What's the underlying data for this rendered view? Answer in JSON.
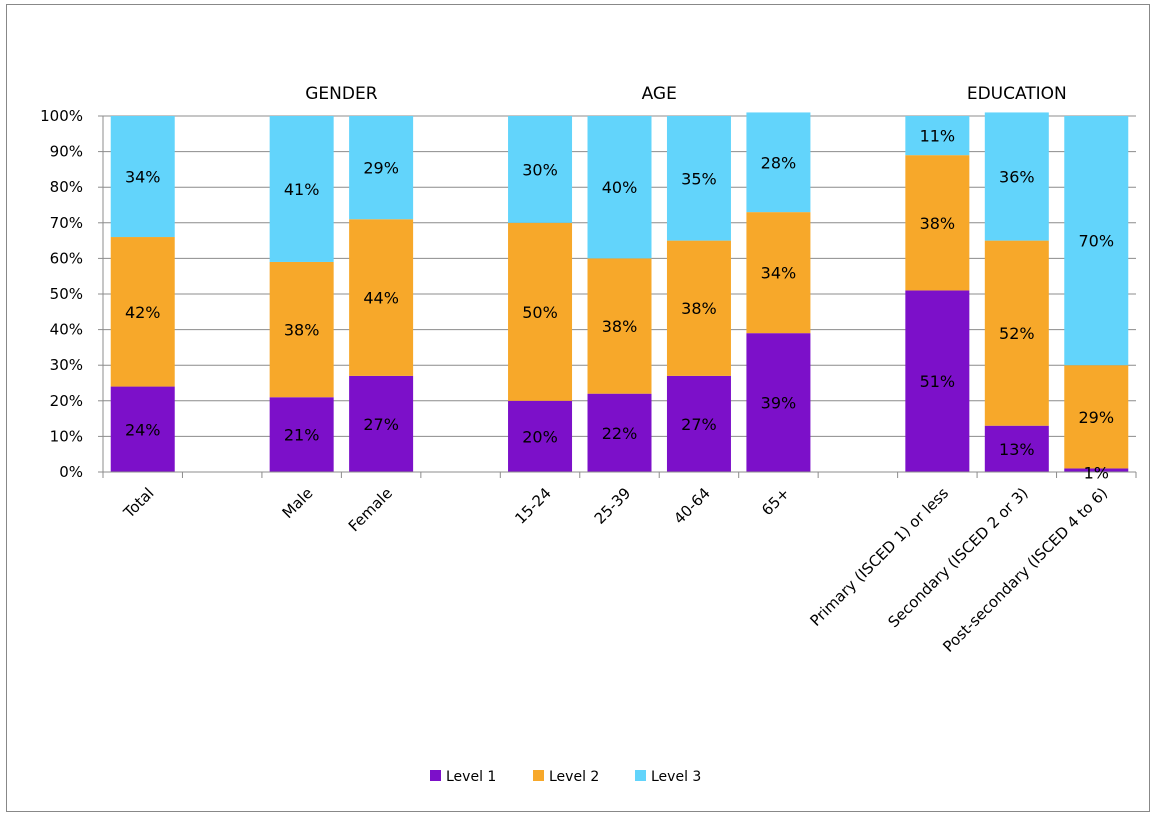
{
  "chart_data": {
    "type": "bar",
    "stacked": true,
    "percent_stacked": true,
    "categories": [
      "Total",
      "Male",
      "Female",
      "15-24",
      "25-39",
      "40-64",
      "65+",
      "Primary (ISCED 1) or less",
      "Secondary (ISCED 2 or 3)",
      "Post-secondary (ISCED 4 to 6)"
    ],
    "group_titles": [
      "GENDER",
      "AGE",
      "EDUCATION"
    ],
    "series": [
      {
        "name": "Level 1",
        "values": [
          24,
          21,
          27,
          20,
          22,
          27,
          39,
          51,
          13,
          1
        ],
        "labels": [
          "24%",
          "21%",
          "27%",
          "20%",
          "22%",
          "27%",
          "39%",
          "51%",
          "13%",
          "1%"
        ]
      },
      {
        "name": "Level 2",
        "values": [
          42,
          38,
          44,
          50,
          38,
          38,
          34,
          38,
          52,
          29
        ],
        "labels": [
          "42%",
          "38%",
          "44%",
          "50%",
          "38%",
          "38%",
          "34%",
          "38%",
          "52%",
          "29%"
        ]
      },
      {
        "name": "Level 3",
        "values": [
          34,
          41,
          29,
          30,
          40,
          35,
          28,
          11,
          36,
          70
        ],
        "labels": [
          "34%",
          "41%",
          "29%",
          "30%",
          "40%",
          "35%",
          "28%",
          "11%",
          "36%",
          "70%"
        ]
      }
    ],
    "colors": [
      "#7c10c9",
      "#f7a82a",
      "#62d4fb"
    ],
    "yticks": [
      "0%",
      "10%",
      "20%",
      "30%",
      "40%",
      "50%",
      "60%",
      "70%",
      "80%",
      "90%",
      "100%"
    ],
    "ylim": [
      0,
      100
    ],
    "grid": true,
    "legend_position": "bottom",
    "xlabel": "",
    "ylabel": ""
  }
}
